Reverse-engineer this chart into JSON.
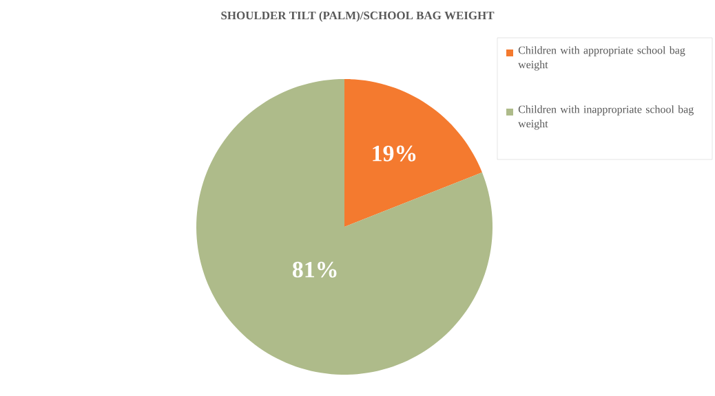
{
  "chart_data": {
    "type": "pie",
    "title": "SHOULDER TILT (PALM)/SCHOOL BAG WEIGHT",
    "categories": [
      "Children with appropriate school bag weight",
      "Children with inappropriate school bag weight"
    ],
    "values": [
      19,
      81
    ],
    "colors": [
      "#f47a2f",
      "#aebb8a"
    ],
    "value_labels": [
      "19%",
      "81%"
    ],
    "legend": "top right"
  }
}
